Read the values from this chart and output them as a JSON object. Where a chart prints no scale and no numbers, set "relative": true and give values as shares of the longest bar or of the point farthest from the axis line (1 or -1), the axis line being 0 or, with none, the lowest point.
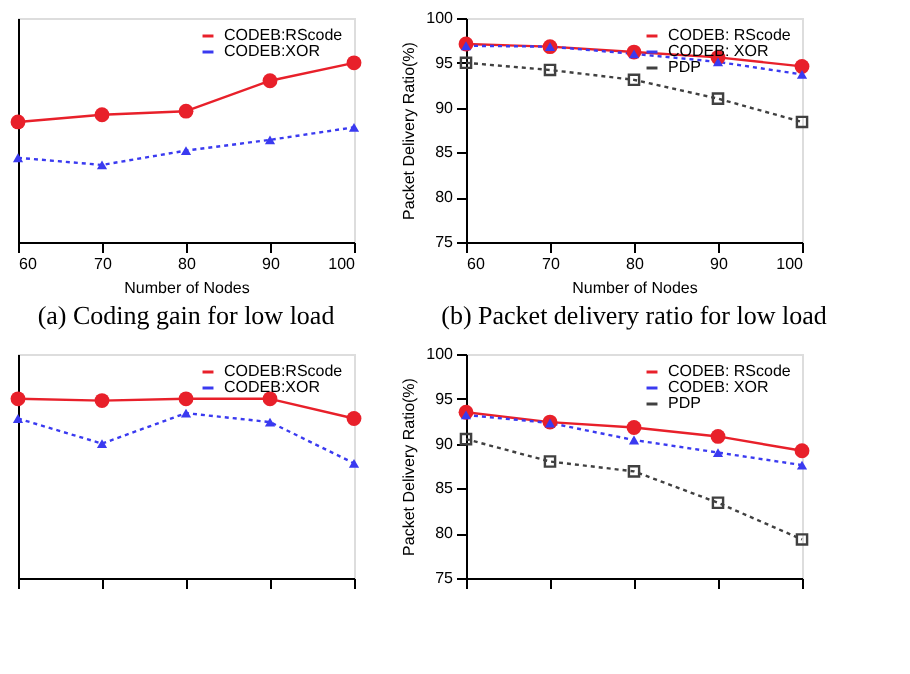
{
  "chart_data": [
    {
      "type": "line",
      "title": "(a) Coding gain for low load",
      "xlabel": "Number of Nodes",
      "x": [
        60,
        70,
        80,
        90,
        100
      ],
      "xlim": [
        60,
        100
      ],
      "xticks": [
        60,
        70,
        80,
        90,
        100
      ],
      "relative": true,
      "legend": "top right",
      "grid": false,
      "series": [
        {
          "name": "CODEB:RScode",
          "color": "#e8202a",
          "values": [
            0.67,
            0.71,
            0.73,
            0.9,
            1.0
          ],
          "line_style": "solid",
          "marker": "circle"
        },
        {
          "name": "CODEB:XOR",
          "color": "#3a3af0",
          "values": [
            0.47,
            0.43,
            0.51,
            0.57,
            0.64
          ],
          "line_style": "dotted",
          "marker": "triangle"
        }
      ]
    },
    {
      "type": "line",
      "title": "(b) Packet delivery ratio for low load",
      "xlabel": "Number of Nodes",
      "ylabel": "Packet Delivery Ratio(%)",
      "x": [
        60,
        70,
        80,
        90,
        100
      ],
      "xlim": [
        60,
        100
      ],
      "xticks": [
        60,
        70,
        80,
        90,
        100
      ],
      "ylim": [
        75,
        100
      ],
      "yticks": [
        75,
        80,
        85,
        90,
        95,
        100
      ],
      "legend": "top right",
      "grid": false,
      "series": [
        {
          "name": "CODEB: RScode",
          "color": "#e8202a",
          "values": [
            97.1,
            96.8,
            96.2,
            95.6,
            94.6
          ],
          "line_style": "solid",
          "marker": "circle"
        },
        {
          "name": "CODEB: XOR",
          "color": "#3a3af0",
          "values": [
            96.9,
            96.8,
            96.0,
            95.1,
            93.7
          ],
          "line_style": "dotted",
          "marker": "triangle"
        },
        {
          "name": "PDP",
          "color": "#404040",
          "values": [
            95.0,
            94.2,
            93.1,
            91.0,
            88.4
          ],
          "line_style": "dotted",
          "marker": "square"
        }
      ]
    },
    {
      "type": "line",
      "x": [
        60,
        70,
        80,
        90,
        100
      ],
      "xlim": [
        60,
        100
      ],
      "xticks": [
        60,
        70,
        80,
        90,
        100
      ],
      "relative": true,
      "legend": "top right",
      "grid": false,
      "tick_labels": false,
      "series": [
        {
          "name": "CODEB:RScode",
          "color": "#e8202a",
          "values": [
            1.0,
            0.99,
            1.0,
            1.0,
            0.89
          ],
          "line_style": "solid",
          "marker": "circle"
        },
        {
          "name": "CODEB:XOR",
          "color": "#3a3af0",
          "values": [
            0.89,
            0.75,
            0.92,
            0.87,
            0.64
          ],
          "line_style": "dotted",
          "marker": "triangle"
        }
      ]
    },
    {
      "type": "line",
      "ylabel": "Packet Delivery Ratio(%)",
      "x": [
        60,
        70,
        80,
        90,
        100
      ],
      "xlim": [
        60,
        100
      ],
      "xticks": [
        60,
        70,
        80,
        90,
        100
      ],
      "ylim": [
        75,
        100
      ],
      "yticks": [
        75,
        80,
        85,
        90,
        95,
        100
      ],
      "legend": "top right",
      "grid": false,
      "tick_labels": "y",
      "series": [
        {
          "name": "CODEB: RScode",
          "color": "#e8202a",
          "values": [
            93.5,
            92.4,
            91.8,
            90.8,
            89.2
          ],
          "line_style": "solid",
          "marker": "circle"
        },
        {
          "name": "CODEB: XOR",
          "color": "#3a3af0",
          "values": [
            93.2,
            92.3,
            90.4,
            89.0,
            87.6
          ],
          "line_style": "dotted",
          "marker": "triangle"
        },
        {
          "name": "PDP",
          "color": "#404040",
          "values": [
            90.5,
            88.0,
            86.9,
            83.4,
            79.3
          ],
          "line_style": "dotted",
          "marker": "square"
        }
      ]
    }
  ]
}
